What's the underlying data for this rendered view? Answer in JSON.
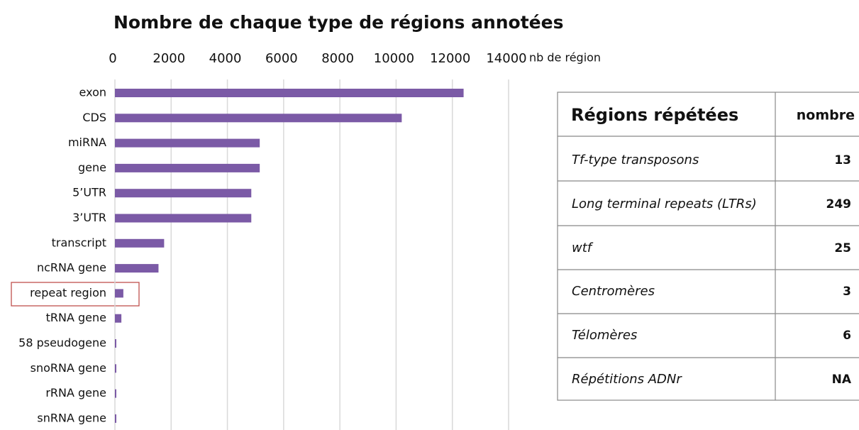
{
  "chart_data": {
    "type": "barh",
    "title": "Nombre de chaque type de régions annotées",
    "x_label": "nb de région",
    "categories": [
      "exon",
      "CDS",
      "miRNA",
      "gene",
      "5’UTR",
      "3’UTR",
      "transcript",
      "ncRNA gene",
      "repeat region",
      "tRNA gene",
      "58 pseudogene",
      "snoRNA gene",
      "rRNA gene",
      "snRNA gene"
    ],
    "values": [
      12400,
      10200,
      5150,
      5150,
      4850,
      4850,
      1750,
      1550,
      300,
      230,
      50,
      50,
      50,
      50
    ],
    "color": "#7b5aa6",
    "xlim": [
      0,
      14000
    ],
    "xticks": [
      0,
      2000,
      4000,
      6000,
      8000,
      10000,
      12000,
      14000
    ],
    "grid": true
  },
  "table": {
    "header": [
      "Régions répétées",
      "nombre"
    ],
    "rows": [
      [
        "Tf-type transposons",
        13
      ],
      [
        "Long terminal repeats (LTRs)",
        249
      ],
      [
        "wtf",
        25
      ],
      [
        "Centromères",
        3
      ],
      [
        "Télomères",
        6
      ],
      [
        "Répétitions ADNr",
        "NA"
      ]
    ]
  }
}
